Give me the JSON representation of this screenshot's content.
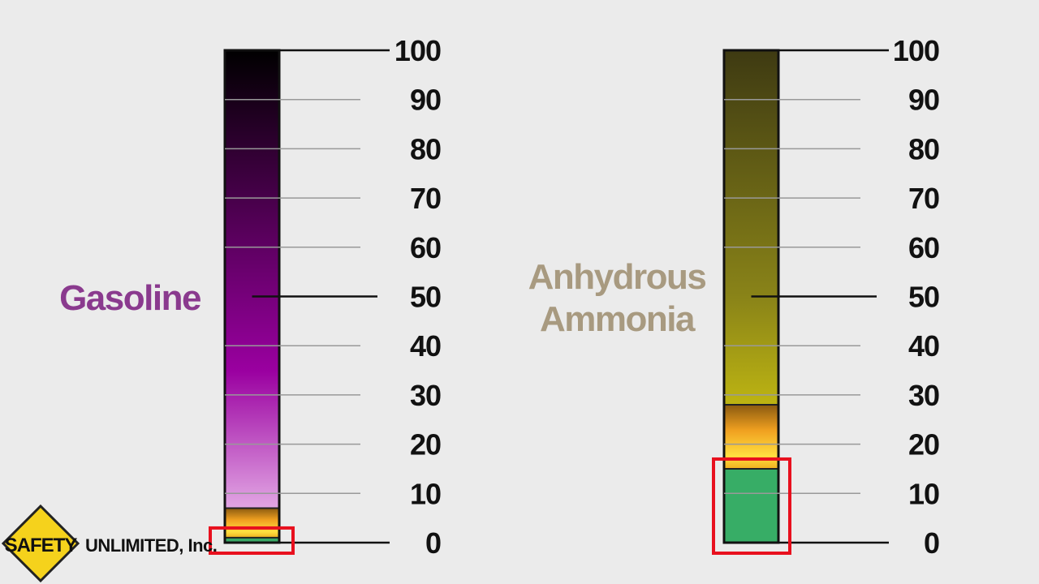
{
  "gauges": [
    {
      "name": "Gasoline",
      "title_lines": [
        "Gasoline"
      ],
      "title_color": "#8a3a8e",
      "lower_flammable_limit": 1,
      "upper_flammable_limit": 7,
      "gradient_top_color": "#000000",
      "gradient_mid_color": "#9a00a0",
      "gradient_bottom_color": "#e2a6e4",
      "safe_zone_color": "#3aa866",
      "highlight": "safe-zone"
    },
    {
      "name": "Anhydrous Ammonia",
      "title_lines": [
        "Anhydrous",
        "Ammonia"
      ],
      "title_color": "#a89a80",
      "lower_flammable_limit": 15,
      "upper_flammable_limit": 28,
      "gradient_top_color": "#3e3a12",
      "gradient_mid_color": "#8a8418",
      "gradient_bottom_color": "#bdb412",
      "safe_zone_color": "#37ad66",
      "highlight": "safe-zone"
    }
  ],
  "scale": {
    "min": 0,
    "max": 100,
    "ticks": [
      "0",
      "10",
      "20",
      "30",
      "40",
      "50",
      "60",
      "70",
      "80",
      "90",
      "100"
    ]
  },
  "highlight_color": "#e8101e",
  "logo": {
    "badge_text": "SAFETY",
    "company_text": "UNLIMITED, Inc."
  }
}
